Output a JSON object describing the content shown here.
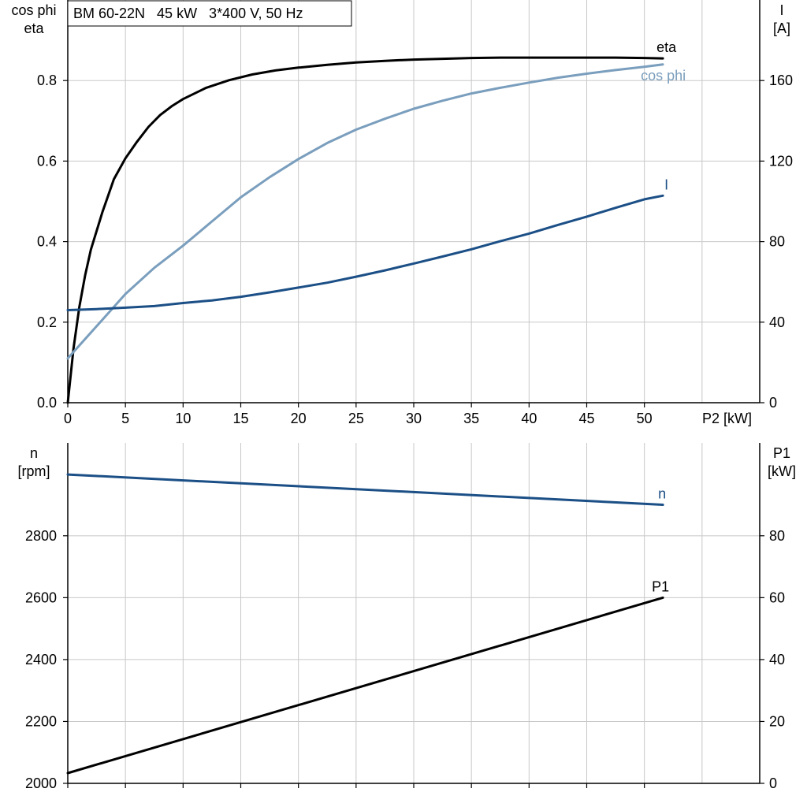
{
  "chart_data": [
    {
      "type": "line",
      "title": "BM 60-22N   45 kW   3*400 V, 50 Hz",
      "xlabel": "P2 [kW]",
      "xlim": [
        0,
        60
      ],
      "xticks": [
        0,
        5,
        10,
        15,
        20,
        25,
        30,
        35,
        40,
        45,
        50
      ],
      "grid": true,
      "left_axis": {
        "label_line1": "cos phi",
        "label_line2": "eta",
        "ylim": [
          0,
          1.0
        ],
        "ticks": [
          "0.0",
          "0.2",
          "0.4",
          "0.6",
          "0.8"
        ]
      },
      "right_axis": {
        "label_line1": "I",
        "label_line2": "[A]",
        "ylim": [
          0,
          200
        ],
        "ticks": [
          "0",
          "40",
          "80",
          "120",
          "160"
        ]
      },
      "series": [
        {
          "name": "eta",
          "axis": "left",
          "color": "#000000",
          "x": [
            0,
            0.5,
            1,
            1.5,
            2,
            3,
            4,
            5,
            6,
            7,
            8,
            9,
            10,
            12,
            14,
            16,
            18,
            20,
            22.5,
            25,
            27.5,
            30,
            32.5,
            35,
            37.5,
            40,
            42.5,
            45,
            47.5,
            50,
            51.6
          ],
          "y": [
            0.0,
            0.135,
            0.237,
            0.316,
            0.38,
            0.473,
            0.555,
            0.607,
            0.648,
            0.685,
            0.714,
            0.736,
            0.754,
            0.782,
            0.801,
            0.815,
            0.825,
            0.832,
            0.839,
            0.845,
            0.849,
            0.852,
            0.854,
            0.856,
            0.857,
            0.857,
            0.857,
            0.857,
            0.857,
            0.856,
            0.855
          ]
        },
        {
          "name": "cos phi",
          "axis": "left",
          "color": "#7a9ebd",
          "x": [
            0,
            2.5,
            5,
            7.5,
            10,
            12.5,
            15,
            17.5,
            20,
            22.5,
            25,
            27.5,
            30,
            32.5,
            35,
            37.5,
            40,
            42.5,
            45,
            47.5,
            50,
            51.6
          ],
          "y": [
            0.11,
            0.19,
            0.27,
            0.335,
            0.39,
            0.45,
            0.51,
            0.56,
            0.605,
            0.645,
            0.678,
            0.705,
            0.73,
            0.75,
            0.768,
            0.782,
            0.795,
            0.807,
            0.817,
            0.826,
            0.834,
            0.84
          ]
        },
        {
          "name": "I",
          "axis": "right",
          "color": "#1b4f86",
          "x": [
            0,
            2.5,
            5,
            7.5,
            10,
            12.5,
            15,
            17.5,
            20,
            22.5,
            25,
            27.5,
            30,
            32.5,
            35,
            37.5,
            40,
            42.5,
            45,
            47.5,
            50,
            51.6
          ],
          "y": [
            46,
            46.5,
            47.2,
            48,
            49.5,
            50.8,
            52.6,
            54.8,
            57.2,
            59.6,
            62.6,
            65.7,
            69.1,
            72.6,
            76.2,
            80.2,
            84,
            88.3,
            92.4,
            96.8,
            101,
            102.8
          ]
        }
      ]
    },
    {
      "type": "line",
      "xlim": [
        0,
        60
      ],
      "grid": true,
      "left_axis": {
        "label_line1": "n",
        "label_line2": "[rpm]",
        "ylim": [
          2000,
          3100
        ],
        "ticks": [
          "2000",
          "2200",
          "2400",
          "2600",
          "2800"
        ]
      },
      "right_axis": {
        "label_line1": "P1",
        "label_line2": "[kW]",
        "ylim": [
          0,
          110
        ],
        "ticks": [
          "0",
          "20",
          "40",
          "60",
          "80"
        ]
      },
      "series": [
        {
          "name": "n",
          "axis": "left",
          "color": "#1b4f86",
          "x": [
            0,
            51.6
          ],
          "y": [
            2998,
            2900
          ]
        },
        {
          "name": "P1",
          "axis": "right",
          "color": "#000000",
          "x": [
            0,
            51.6
          ],
          "y": [
            3.3,
            60
          ]
        }
      ]
    }
  ]
}
